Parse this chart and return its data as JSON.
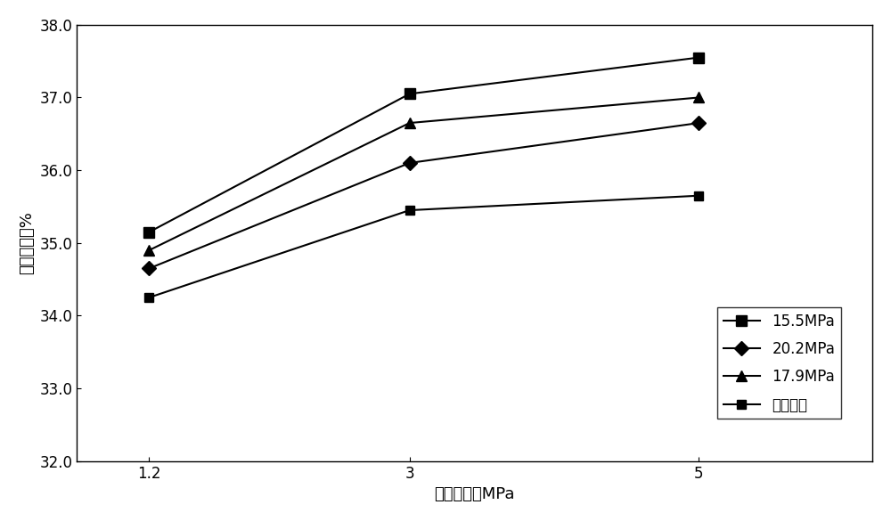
{
  "x": [
    1.2,
    3,
    5
  ],
  "series": [
    {
      "label": "15.5MPa",
      "values": [
        35.15,
        37.05,
        37.55
      ],
      "marker": "s"
    },
    {
      "label": "20.2MPa",
      "values": [
        34.65,
        36.1,
        36.65
      ],
      "marker": "D"
    },
    {
      "label": "17.9MPa",
      "values": [
        34.9,
        36.65,
        37.0
      ],
      "marker": "^"
    },
    {
      "label": "目前压力",
      "values": [
        34.25,
        35.45,
        35.65
      ],
      "marker": "s"
    }
  ],
  "xlabel": "生产压差，MPa",
  "ylabel": "采出程度，%",
  "xlim": [
    0.7,
    6.2
  ],
  "ylim": [
    32.0,
    38.0
  ],
  "yticks": [
    32.0,
    33.0,
    34.0,
    35.0,
    36.0,
    37.0,
    38.0
  ],
  "xticks": [
    1.2,
    3,
    5
  ],
  "background_color": "#ffffff",
  "linewidth": 1.5,
  "markersize": 8,
  "markersizes": [
    8,
    8,
    8,
    7
  ]
}
